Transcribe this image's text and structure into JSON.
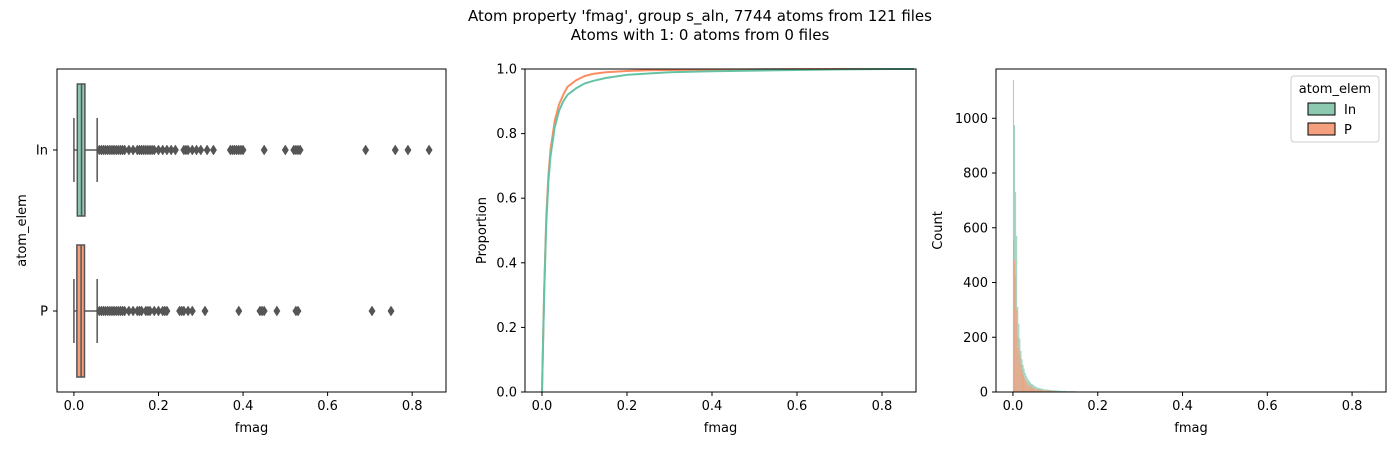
{
  "figure": {
    "title_line1": "Atom property 'fmag', group s_aln, 7744 atoms from 121 files",
    "title_line2": "Atoms with 1: 0 atoms from 0 files"
  },
  "chart_data": [
    {
      "type": "box",
      "orientation": "horizontal",
      "xlabel": "fmag",
      "ylabel": "atom_elem",
      "categories": [
        "In",
        "P"
      ],
      "xlim": [
        -0.04,
        0.88
      ],
      "xticks": [
        0.0,
        0.2,
        0.4,
        0.6,
        0.8
      ],
      "xtick_labels": [
        "0.0",
        "0.2",
        "0.4",
        "0.6",
        "0.8"
      ],
      "colors": {
        "In": "#8dc8b0",
        "P": "#f4a07e"
      },
      "boxes": [
        {
          "name": "In",
          "whislo": 0.0,
          "q1": 0.008,
          "median": 0.018,
          "q3": 0.026,
          "whishi": 0.055,
          "fliers": [
            0.06,
            0.065,
            0.07,
            0.075,
            0.08,
            0.085,
            0.09,
            0.095,
            0.1,
            0.105,
            0.11,
            0.115,
            0.12,
            0.13,
            0.14,
            0.15,
            0.155,
            0.16,
            0.165,
            0.17,
            0.175,
            0.18,
            0.185,
            0.19,
            0.2,
            0.21,
            0.22,
            0.23,
            0.24,
            0.26,
            0.265,
            0.27,
            0.28,
            0.29,
            0.3,
            0.315,
            0.33,
            0.37,
            0.375,
            0.38,
            0.385,
            0.39,
            0.395,
            0.4,
            0.45,
            0.5,
            0.52,
            0.525,
            0.53,
            0.535,
            0.69,
            0.76,
            0.79,
            0.84
          ]
        },
        {
          "name": "P",
          "whislo": 0.0,
          "q1": 0.007,
          "median": 0.017,
          "q3": 0.025,
          "whishi": 0.055,
          "fliers": [
            0.06,
            0.065,
            0.07,
            0.075,
            0.08,
            0.085,
            0.09,
            0.095,
            0.1,
            0.105,
            0.11,
            0.115,
            0.12,
            0.13,
            0.14,
            0.15,
            0.155,
            0.16,
            0.17,
            0.175,
            0.18,
            0.19,
            0.2,
            0.21,
            0.215,
            0.22,
            0.25,
            0.255,
            0.26,
            0.27,
            0.28,
            0.31,
            0.39,
            0.44,
            0.445,
            0.45,
            0.48,
            0.525,
            0.53,
            0.705,
            0.75
          ]
        }
      ]
    },
    {
      "type": "line",
      "subtype": "ecdf",
      "xlabel": "fmag",
      "ylabel": "Proportion",
      "xlim": [
        -0.04,
        0.88
      ],
      "ylim": [
        0.0,
        1.0
      ],
      "xticks": [
        0.0,
        0.2,
        0.4,
        0.6,
        0.8
      ],
      "xtick_labels": [
        "0.0",
        "0.2",
        "0.4",
        "0.6",
        "0.8"
      ],
      "yticks": [
        0.0,
        0.2,
        0.4,
        0.6,
        0.8,
        1.0
      ],
      "ytick_labels": [
        "0.0",
        "0.2",
        "0.4",
        "0.6",
        "0.8",
        "1.0"
      ],
      "series": [
        {
          "name": "In",
          "color": "#66c2a5",
          "x": [
            0.0,
            0.005,
            0.01,
            0.015,
            0.02,
            0.03,
            0.04,
            0.05,
            0.06,
            0.08,
            0.1,
            0.12,
            0.15,
            0.2,
            0.25,
            0.3,
            0.4,
            0.5,
            0.6,
            0.7,
            0.84
          ],
          "y": [
            0.0,
            0.3,
            0.52,
            0.65,
            0.73,
            0.82,
            0.87,
            0.9,
            0.92,
            0.94,
            0.955,
            0.963,
            0.972,
            0.982,
            0.986,
            0.99,
            0.993,
            0.995,
            0.997,
            0.999,
            1.0
          ]
        },
        {
          "name": "P",
          "color": "#fc8d62",
          "x": [
            0.0,
            0.005,
            0.01,
            0.015,
            0.02,
            0.03,
            0.04,
            0.05,
            0.06,
            0.08,
            0.1,
            0.12,
            0.15,
            0.2,
            0.25,
            0.3,
            0.4,
            0.5,
            0.6,
            0.75
          ],
          "y": [
            0.0,
            0.31,
            0.54,
            0.67,
            0.75,
            0.84,
            0.89,
            0.92,
            0.945,
            0.965,
            0.978,
            0.985,
            0.99,
            0.994,
            0.996,
            0.997,
            0.998,
            0.999,
            0.9995,
            1.0
          ]
        }
      ]
    },
    {
      "type": "histogram",
      "xlabel": "fmag",
      "ylabel": "Count",
      "xlim": [
        -0.04,
        0.88
      ],
      "ylim": [
        0,
        1180
      ],
      "xticks": [
        0.0,
        0.2,
        0.4,
        0.6,
        0.8
      ],
      "xtick_labels": [
        "0.0",
        "0.2",
        "0.4",
        "0.6",
        "0.8"
      ],
      "yticks": [
        0,
        200,
        400,
        600,
        800,
        1000
      ],
      "ytick_labels": [
        "0",
        "200",
        "400",
        "600",
        "800",
        "1000"
      ],
      "legend": {
        "title": "atom_elem",
        "placement": "top-right",
        "entries": [
          "In",
          "P"
        ]
      },
      "bin_start": 0.0,
      "bin_width": 0.0025,
      "series": [
        {
          "name": "In",
          "color": "#8dc8b0",
          "values": [
            1140,
            975,
            730,
            570,
            310,
            250,
            195,
            150,
            120,
            100,
            85,
            70,
            60,
            52,
            45,
            40,
            35,
            30,
            28,
            25,
            22,
            20,
            18,
            16,
            15,
            14,
            13,
            12,
            11,
            10,
            10,
            9,
            9,
            8,
            8,
            7,
            7,
            7,
            6,
            6,
            6,
            5,
            5,
            5,
            5,
            4,
            4,
            4,
            4,
            4,
            3,
            3,
            3,
            3,
            3,
            3,
            3,
            3,
            3,
            3
          ]
        },
        {
          "name": "P",
          "color": "#f4a07e",
          "values": [
            560,
            480,
            420,
            300,
            200,
            160,
            130,
            100,
            80,
            65,
            55,
            45,
            38,
            32,
            27,
            23,
            20,
            17,
            15,
            13,
            12,
            11,
            10,
            9,
            8,
            7,
            7,
            6,
            6,
            5,
            5,
            5,
            4,
            4,
            4,
            4,
            3,
            3,
            3,
            3
          ]
        }
      ],
      "tail_count": 2
    }
  ]
}
